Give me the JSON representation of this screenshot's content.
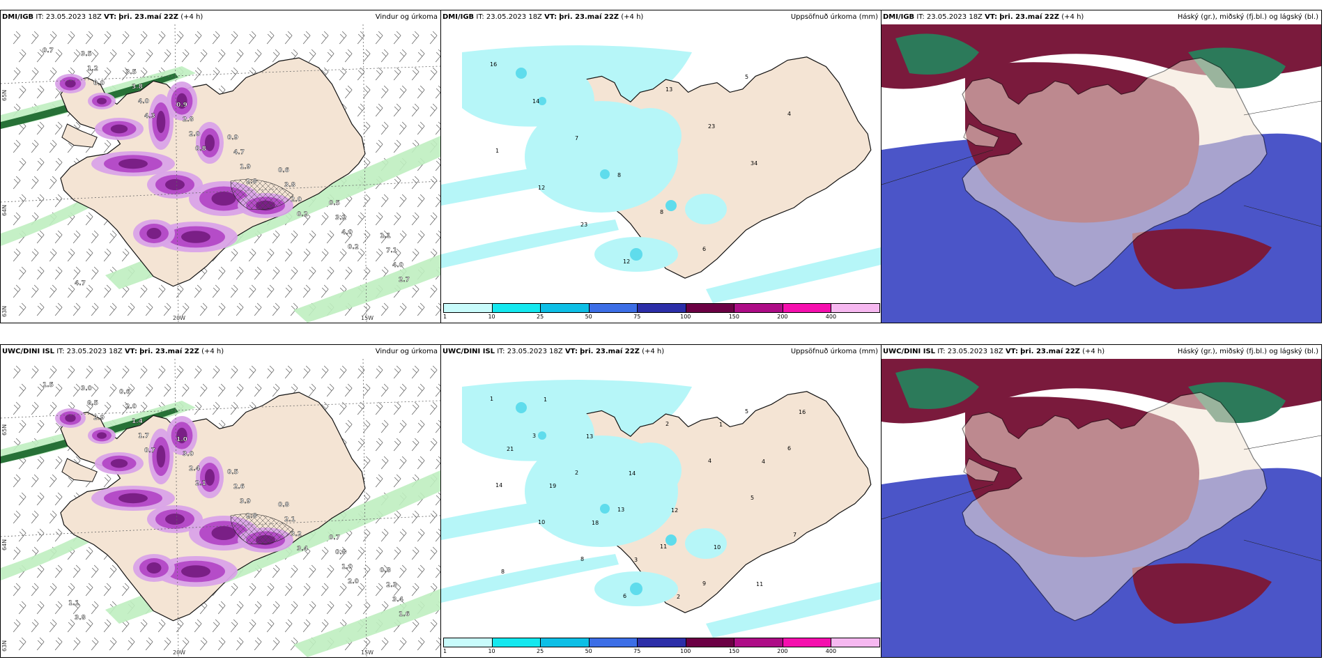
{
  "panels": [
    {
      "model": "DMI/IGB",
      "it_label": "IT:",
      "it": "23.05.2023 18Z",
      "vt_label": "VT:",
      "vt": "þri. 23.maí 22Z",
      "lead": "(+4 h)",
      "title": "Vindur og úrkoma",
      "kind": "wind",
      "lon_labels": [
        "20W",
        "15W"
      ],
      "lat_labels": [
        "65N",
        "64N",
        "63N"
      ],
      "values": [
        "0.7",
        "0.0",
        "4.3",
        "0.8",
        "2.8",
        "0.2",
        "0.2",
        "2.7",
        "1.2",
        "4.0",
        "2.0",
        "1.9",
        "2.0",
        "4.0",
        "4.0",
        "3.5",
        "3.8",
        "2.8",
        "4.7",
        "3.8",
        "3.1",
        "7.1",
        "4.7",
        "3.5",
        "0.9",
        "0.9",
        "0.6",
        "0.5",
        "1.1"
      ]
    },
    {
      "model": "DMI/IGB",
      "it_label": "IT:",
      "it": "23.05.2023 18Z",
      "vt_label": "VT:",
      "vt": "þri. 23.maí 22Z",
      "lead": "(+4 h)",
      "title": "Uppsöfnuð úrkoma (mm)",
      "kind": "accum",
      "values": [
        "16",
        "14",
        "7",
        "8",
        "8",
        "6",
        "5",
        "4",
        "1",
        "12",
        "23",
        "12",
        "13",
        "23",
        "34"
      ]
    },
    {
      "model": "DMI/IGB",
      "it_label": "IT:",
      "it": "23.05.2023 18Z",
      "vt_label": "VT:",
      "vt": "þri. 23.maí 22Z",
      "lead": "(+4 h)",
      "title": "Háský (gr.), miðský (fj.bl.) og lágský (bl.)",
      "kind": "cloud"
    },
    {
      "model": "UWC/DINI ISL",
      "it_label": "IT:",
      "it": "23.05.2023 18Z",
      "vt_label": "VT:",
      "vt": "þri. 23.maí 22Z",
      "lead": "(+4 h)",
      "title": "Vindur og úrkoma",
      "kind": "wind",
      "lon_labels": [
        "20W",
        "15W"
      ],
      "lat_labels": [
        "65N",
        "64N",
        "63N"
      ],
      "values": [
        "1.5",
        "2.9",
        "0.7",
        "2.1",
        "2.8",
        "3.4",
        "2.0",
        "1.6",
        "0.5",
        "1.7",
        "2.4",
        "3.9",
        "3.2",
        "1.0",
        "3.4",
        "3.0",
        "1.4",
        "3.0",
        "2.6",
        "2.1",
        "0.8",
        "2.3",
        "3.8",
        "2.0",
        "1.0",
        "0.5",
        "0.8",
        "0.7",
        "0.8",
        "1.1",
        "0.6"
      ]
    },
    {
      "model": "UWC/DINI ISL",
      "it_label": "IT:",
      "it": "23.05.2023 18Z",
      "vt_label": "VT:",
      "vt": "þri. 23.maí 22Z",
      "lead": "(+4 h)",
      "title": "Uppsöfnuð úrkoma (mm)",
      "kind": "accum",
      "values": [
        "1",
        "3",
        "2",
        "13",
        "11",
        "9",
        "5",
        "6",
        "14",
        "10",
        "8",
        "6",
        "2",
        "4",
        "5",
        "7",
        "8",
        "1",
        "13",
        "14",
        "12",
        "10",
        "11",
        "16",
        "21",
        "19",
        "18",
        "3",
        "2",
        "1",
        "4"
      ]
    },
    {
      "model": "UWC/DINI ISL",
      "it_label": "IT:",
      "it": "23.05.2023 18Z",
      "vt_label": "VT:",
      "vt": "þri. 23.maí 22Z",
      "lead": "(+4 h)",
      "title": "Háský (gr.), miðský (fj.bl.) og lágský (bl.)",
      "kind": "cloud"
    }
  ],
  "colorbar": {
    "ticks": [
      "1",
      "10",
      "25",
      "50",
      "75",
      "100",
      "150",
      "200",
      "400"
    ],
    "colors": [
      "#c8fbfb",
      "#14e8ef",
      "#0dbfe6",
      "#3c6ee6",
      "#2c2ea8",
      "#6b0044",
      "#ad0c86",
      "#f50fae",
      "#f6b8f0"
    ]
  },
  "colors": {
    "land": "#f4e4d4",
    "ice": "#ffffff",
    "precip_light": "#d9a3e8",
    "precip_mid": "#b54cc8",
    "precip_dark": "#7a1f86",
    "windbelt_light": "#bfeec0",
    "windbelt_dark": "#0b5a1d",
    "accum_light": "#b6f6f8",
    "accum_mid": "#5fdcec",
    "high_cloud": "#2c7a5a",
    "mid_cloud": "#7a1a3c",
    "low_cloud": "#4b55c8"
  }
}
